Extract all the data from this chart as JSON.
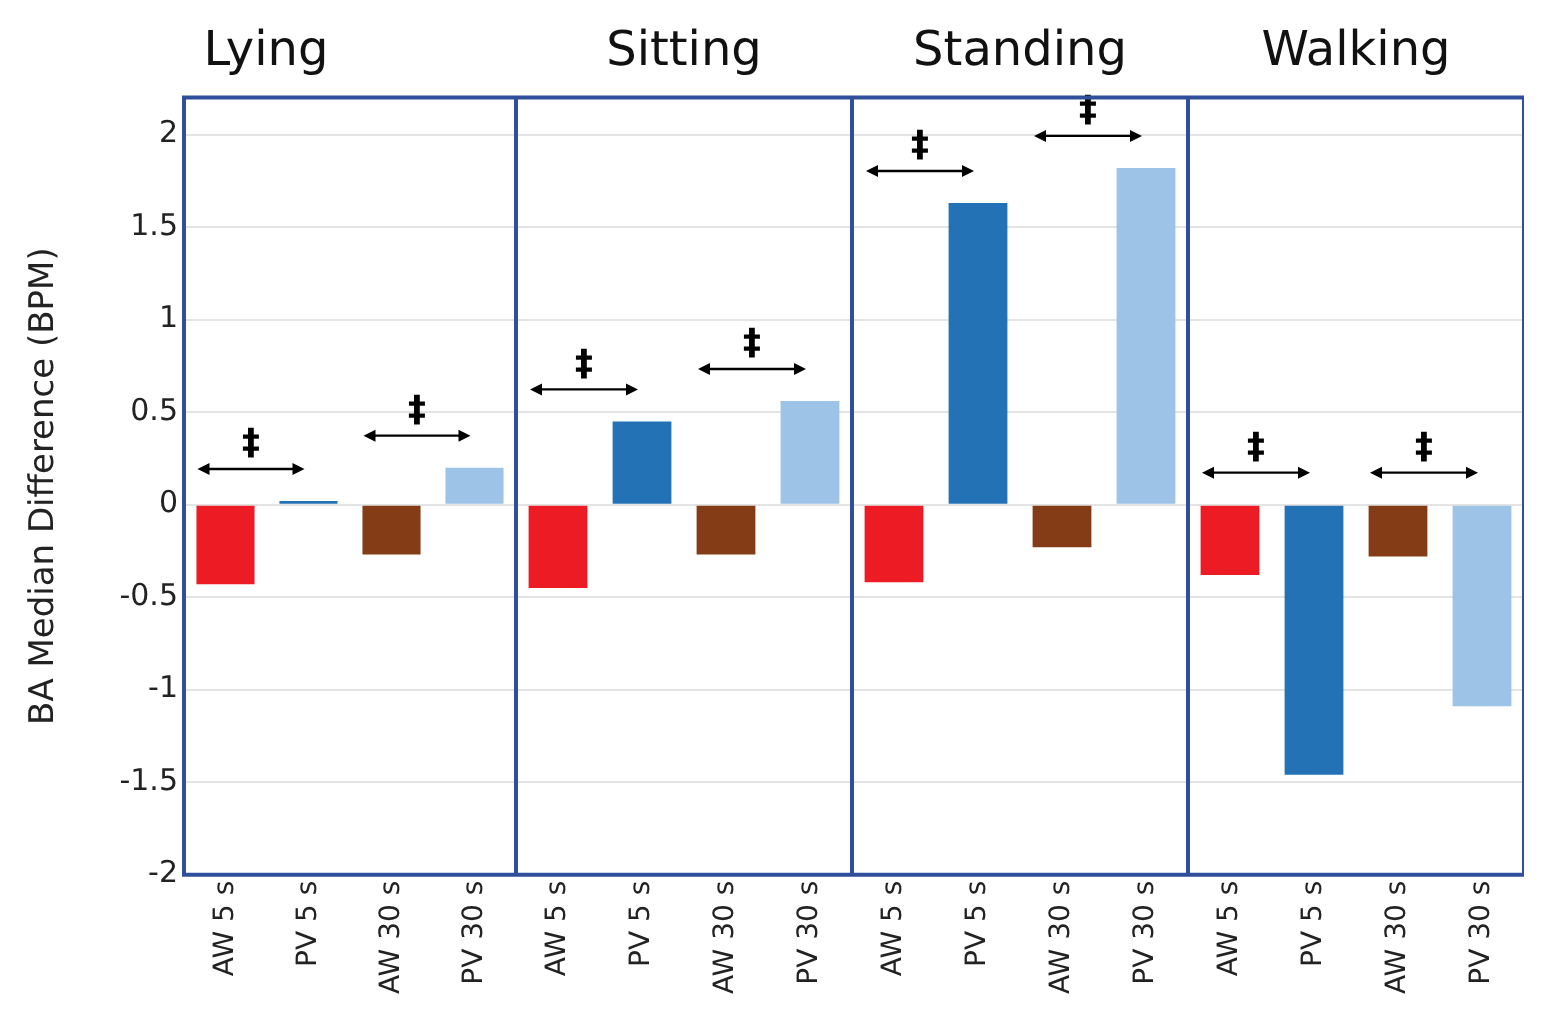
{
  "chart_data": [
    {
      "type": "bar",
      "title": "Lying",
      "ylabel": "BA Median Difference (BPM)",
      "categories": [
        "AW 5 s",
        "PV 5 s",
        "AW 30 s",
        "PV 30 s"
      ],
      "values": [
        -0.43,
        0.02,
        -0.27,
        0.2
      ],
      "colors": [
        "#ed1c24",
        "#2372b6",
        "#843c17",
        "#9dc3e6"
      ],
      "ylim": [
        -2,
        2.2
      ],
      "yticks": [
        -2,
        -1.5,
        -1,
        -0.5,
        0,
        0.5,
        1,
        1.5,
        2
      ],
      "grid": "y",
      "annotations": [
        "‡",
        "‡"
      ]
    },
    {
      "type": "bar",
      "title": "Sitting",
      "categories": [
        "AW 5 s",
        "PV 5 s",
        "AW 30 s",
        "PV 30 s"
      ],
      "values": [
        -0.45,
        0.45,
        -0.27,
        0.56
      ],
      "colors": [
        "#ed1c24",
        "#2372b6",
        "#843c17",
        "#9dc3e6"
      ],
      "ylim": [
        -2,
        2.2
      ],
      "yticks": [
        -2,
        -1.5,
        -1,
        -0.5,
        0,
        0.5,
        1,
        1.5,
        2
      ],
      "grid": "y",
      "tick_labels": "x",
      "annotations": [
        "‡",
        "‡"
      ]
    },
    {
      "type": "bar",
      "title": "Standing",
      "categories": [
        "AW 5 s",
        "PV 5 s",
        "AW 30 s",
        "PV 30 s"
      ],
      "values": [
        -0.42,
        1.63,
        -0.23,
        1.82
      ],
      "colors": [
        "#ed1c24",
        "#2372b6",
        "#843c17",
        "#9dc3e6"
      ],
      "ylim": [
        -2,
        2.2
      ],
      "yticks": [
        -2,
        -1.5,
        -1,
        -0.5,
        0,
        0.5,
        1,
        1.5,
        2
      ],
      "grid": "y",
      "tick_labels": "x",
      "annotations": [
        "‡",
        "‡"
      ]
    },
    {
      "type": "bar",
      "title": "Walking",
      "categories": [
        "AW 5 s",
        "PV 5 s",
        "AW 30 s",
        "PV 30 s"
      ],
      "values": [
        -0.38,
        -1.46,
        -0.28,
        -1.09
      ],
      "colors": [
        "#ed1c24",
        "#2372b6",
        "#843c17",
        "#9dc3e6"
      ],
      "ylim": [
        -2,
        2.2
      ],
      "yticks": [
        -2,
        -1.5,
        -1,
        -0.5,
        0,
        0.5,
        1,
        1.5,
        2
      ],
      "grid": "y",
      "tick_labels": "x",
      "annotations": [
        "‡",
        "‡"
      ]
    }
  ]
}
